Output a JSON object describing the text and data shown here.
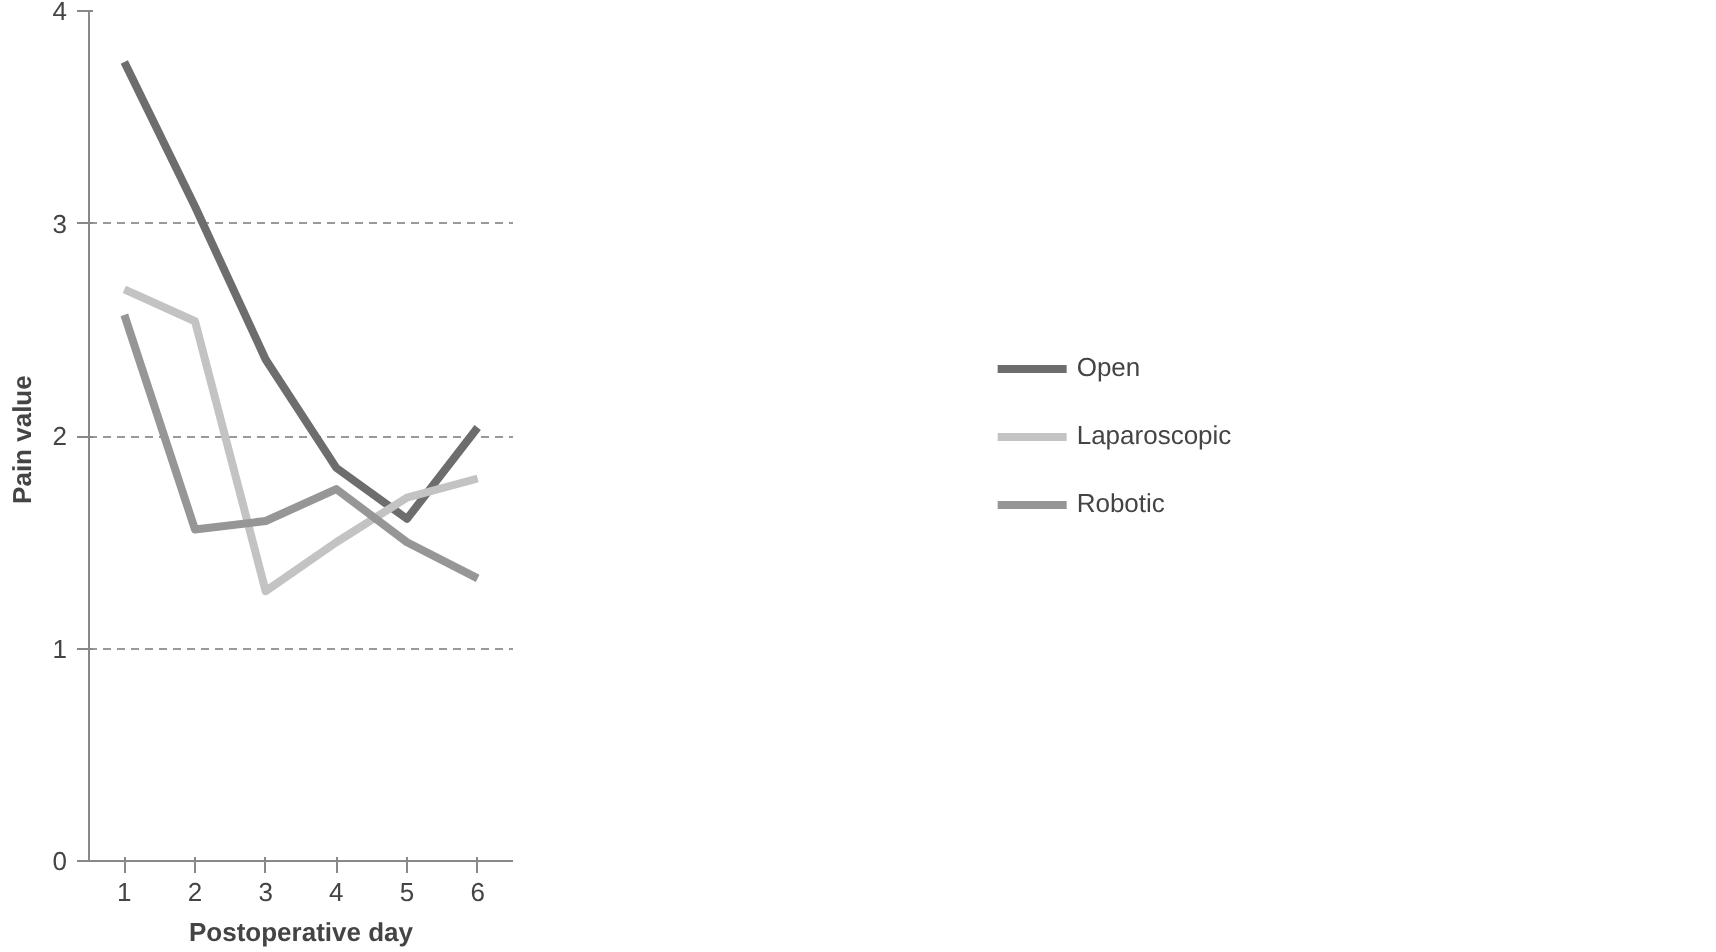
{
  "chart_data": {
    "type": "line",
    "xlabel": "Postoperative day",
    "ylabel": "Pain  value",
    "categories": [
      "1",
      "2",
      "3",
      "4",
      "5",
      "6"
    ],
    "series": [
      {
        "name": "Open",
        "color": "#6d6d6d",
        "values": [
          3.76,
          3.08,
          2.36,
          1.85,
          1.61,
          2.04
        ]
      },
      {
        "name": "Laparoscopic",
        "color": "#c3c3c3",
        "values": [
          2.69,
          2.54,
          1.27,
          1.5,
          1.71,
          1.8
        ]
      },
      {
        "name": "Robotic",
        "color": "#969696",
        "values": [
          2.57,
          1.56,
          1.6,
          1.75,
          1.5,
          1.33
        ]
      }
    ],
    "ylim": [
      0,
      4
    ],
    "yticks": [
      0,
      1,
      2,
      3,
      4
    ],
    "grid": "y",
    "legend": "right",
    "marker": "none",
    "line_style": "solid"
  }
}
